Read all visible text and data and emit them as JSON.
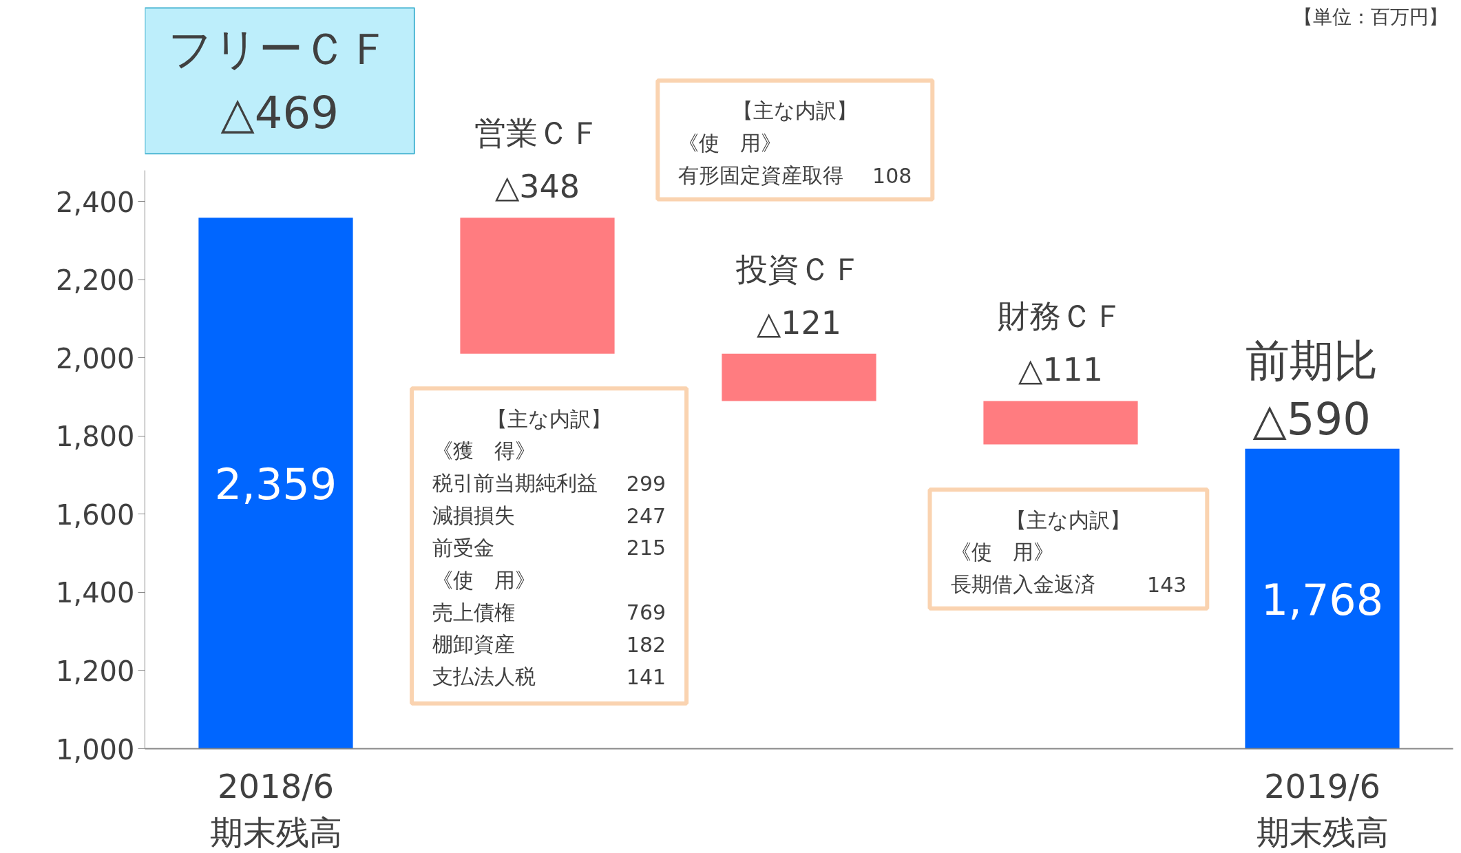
{
  "chart_data": {
    "type": "bar",
    "categories": [
      "2018/6\n期末残高",
      null,
      null,
      null,
      "2019/6\n期末残高"
    ],
    "values": [
      2359,
      -348,
      -121,
      -111,
      1768
    ],
    "base": [
      null,
      2359,
      2011,
      1890,
      null
    ],
    "colors": [
      "#0066ff",
      "#ff7c80",
      "#ff7c80",
      "#ff7c80",
      "#0066ff"
    ],
    "value_labels": [
      "2,359",
      "営業ＣＦ\n△348",
      "投資ＣＦ\n△121",
      "財務ＣＦ\n△111",
      "1,768"
    ],
    "ylim": [
      1000,
      2480
    ],
    "yticks": [
      {
        "value": 1000,
        "label": "1,000"
      },
      {
        "value": 1200,
        "label": "1,200"
      },
      {
        "value": 1400,
        "label": "1,400"
      },
      {
        "value": 1600,
        "label": "1,600"
      },
      {
        "value": 1800,
        "label": "1,800"
      },
      {
        "value": 2000,
        "label": "2,000"
      },
      {
        "value": 2200,
        "label": "2,200"
      },
      {
        "value": 2400,
        "label": "2,400"
      }
    ],
    "grid": false,
    "annotations": [
      "【単位：百万円】",
      "フリーＣＦ\n△469",
      "前期比\n△590",
      "【主な内訳】",
      "《使　用》",
      "有形固定資産取得",
      "108",
      "【主な内訳】",
      "《獲　得》",
      "税引前当期純利益",
      "299",
      "減損損失",
      "247",
      "前受金",
      "215",
      "《使　用》",
      "売上債権",
      "769",
      "棚卸資産",
      "182",
      "支払法人税",
      "141",
      "【主な内訳】",
      "《使　用》",
      "長期借入金返済",
      "143"
    ]
  }
}
